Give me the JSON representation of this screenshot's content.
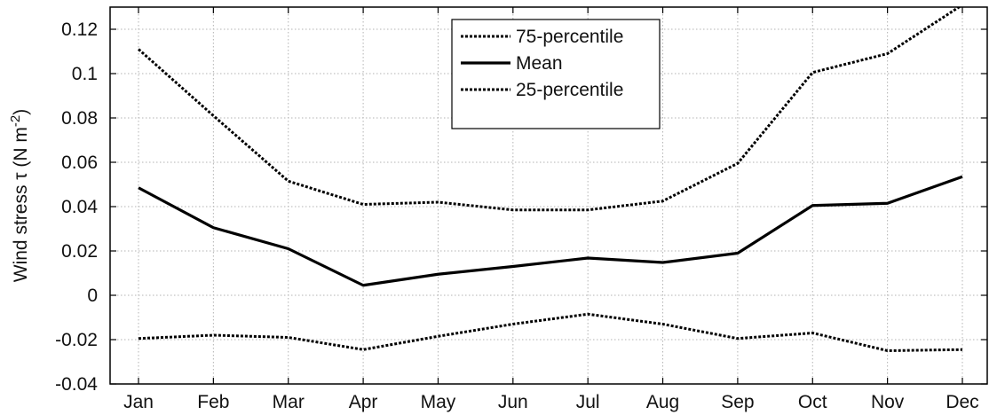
{
  "chart_data": {
    "type": "line",
    "title": "",
    "xlabel": "",
    "ylabel": {
      "main": "Wind stress τ (N m",
      "superscript": "-2",
      "close": ")"
    },
    "categories": [
      "Jan",
      "Feb",
      "Mar",
      "Apr",
      "May",
      "Jun",
      "Jul",
      "Aug",
      "Sep",
      "Oct",
      "Nov",
      "Dec"
    ],
    "ylim": [
      -0.04,
      0.13
    ],
    "yticks": [
      -0.04,
      -0.02,
      0,
      0.02,
      0.04,
      0.06,
      0.08,
      0.1,
      0.12
    ],
    "ytick_labels": [
      "-0.04",
      "-0.02",
      "0",
      "0.02",
      "0.04",
      "0.06",
      "0.08",
      "0.1",
      "0.12"
    ],
    "grid": true,
    "legend_position": "top-center",
    "series": [
      {
        "name": "75-percentile",
        "style": "dashed",
        "color": "#000000",
        "values": [
          0.111,
          0.081,
          0.0515,
          0.041,
          0.042,
          0.0385,
          0.0385,
          0.0425,
          0.0595,
          0.1005,
          0.109,
          0.131
        ]
      },
      {
        "name": "Mean",
        "style": "solid",
        "color": "#000000",
        "values": [
          0.0485,
          0.0305,
          0.021,
          0.0045,
          0.0095,
          0.013,
          0.0168,
          0.0148,
          0.019,
          0.0405,
          0.0415,
          0.0535
        ]
      },
      {
        "name": "25-percentile",
        "style": "dashed",
        "color": "#000000",
        "values": [
          -0.0195,
          -0.018,
          -0.019,
          -0.0245,
          -0.0185,
          -0.013,
          -0.0085,
          -0.013,
          -0.0195,
          -0.017,
          -0.025,
          -0.0245
        ]
      }
    ]
  }
}
